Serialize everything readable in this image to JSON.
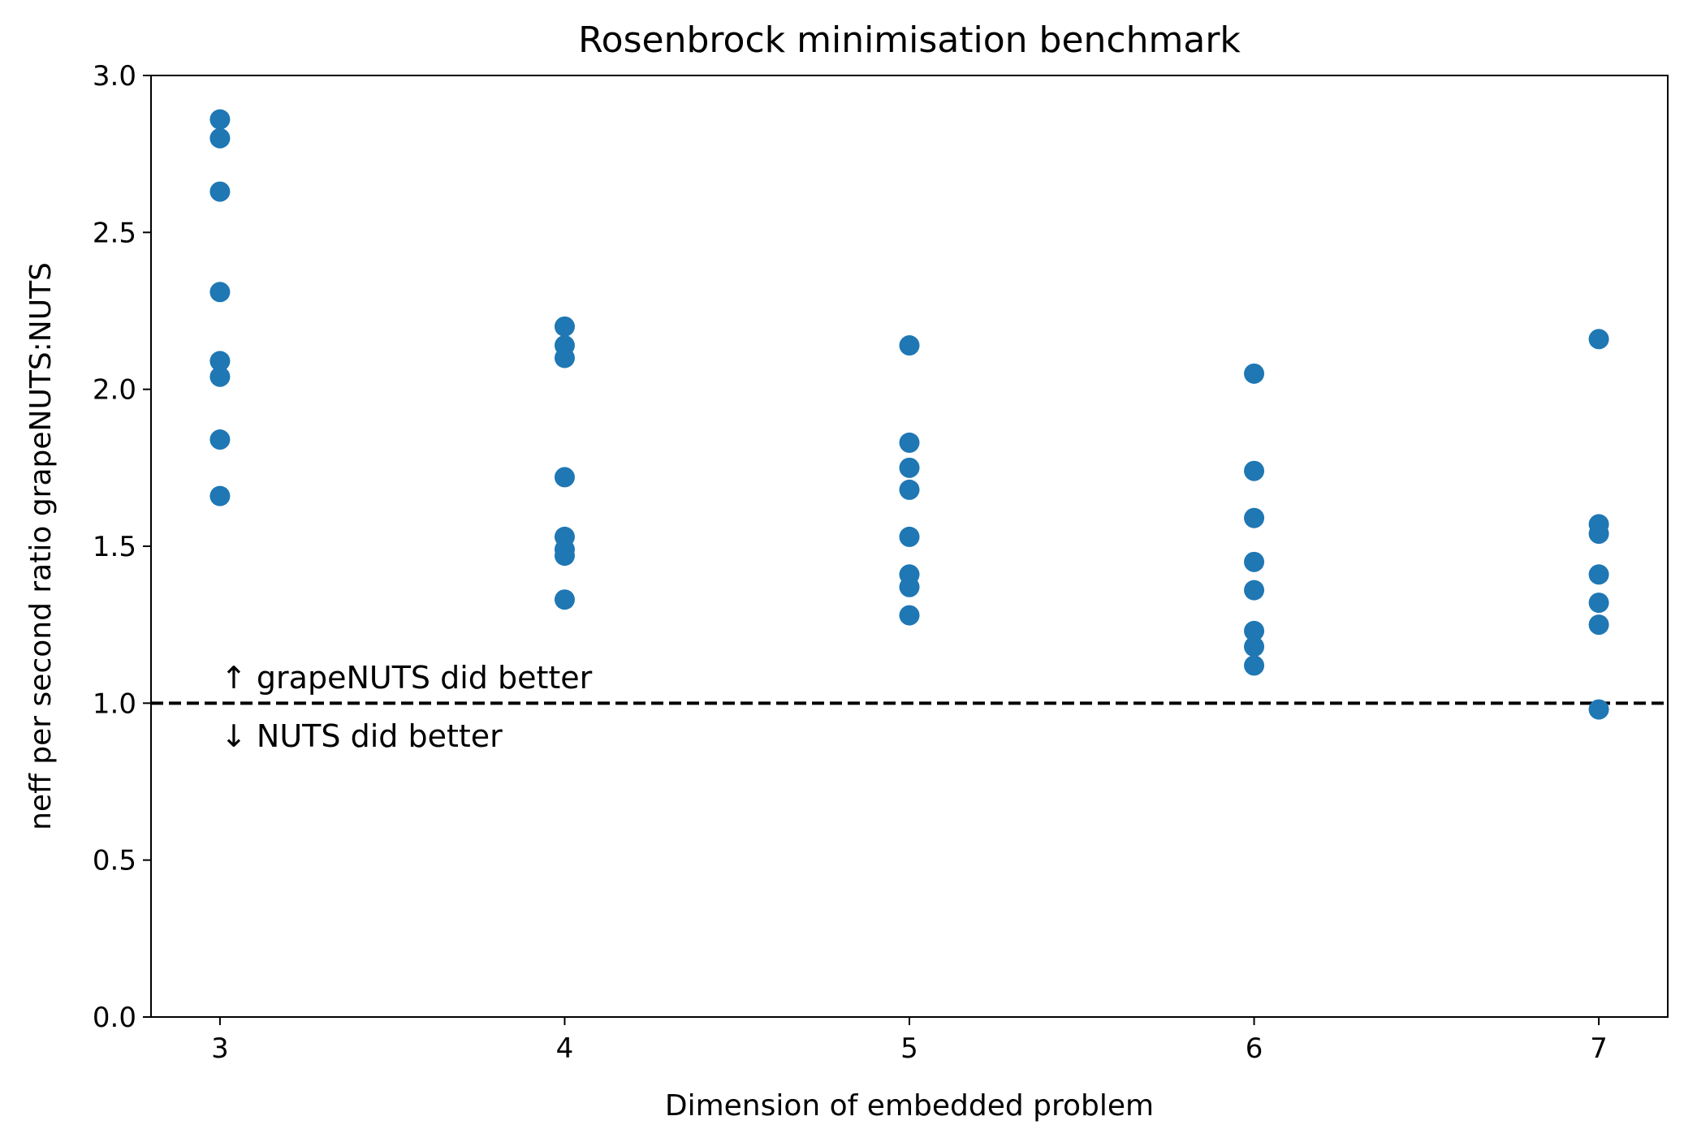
{
  "chart_data": {
    "type": "scatter",
    "title": "Rosenbrock minimisation benchmark",
    "xlabel": "Dimension of embedded problem",
    "ylabel": "neff per second ratio grapeNUTS:NUTS",
    "xlim": [
      2.8,
      7.2
    ],
    "ylim": [
      0.0,
      3.0
    ],
    "xticks": [
      3,
      4,
      5,
      6,
      7
    ],
    "xtick_labels": [
      "3",
      "4",
      "5",
      "6",
      "7"
    ],
    "yticks": [
      0.0,
      0.5,
      1.0,
      1.5,
      2.0,
      2.5,
      3.0
    ],
    "ytick_labels": [
      "0.0",
      "0.5",
      "1.0",
      "1.5",
      "2.0",
      "2.5",
      "3.0"
    ],
    "grid": false,
    "series_color": "#1f77b4",
    "points": [
      {
        "x": 3,
        "y": 2.86
      },
      {
        "x": 3,
        "y": 2.8
      },
      {
        "x": 3,
        "y": 2.63
      },
      {
        "x": 3,
        "y": 2.31
      },
      {
        "x": 3,
        "y": 2.09
      },
      {
        "x": 3,
        "y": 2.04
      },
      {
        "x": 3,
        "y": 1.84
      },
      {
        "x": 3,
        "y": 1.66
      },
      {
        "x": 4,
        "y": 2.2
      },
      {
        "x": 4,
        "y": 2.14
      },
      {
        "x": 4,
        "y": 2.1
      },
      {
        "x": 4,
        "y": 1.72
      },
      {
        "x": 4,
        "y": 1.53
      },
      {
        "x": 4,
        "y": 1.49
      },
      {
        "x": 4,
        "y": 1.47
      },
      {
        "x": 4,
        "y": 1.33
      },
      {
        "x": 5,
        "y": 2.14
      },
      {
        "x": 5,
        "y": 1.83
      },
      {
        "x": 5,
        "y": 1.75
      },
      {
        "x": 5,
        "y": 1.68
      },
      {
        "x": 5,
        "y": 1.53
      },
      {
        "x": 5,
        "y": 1.41
      },
      {
        "x": 5,
        "y": 1.37
      },
      {
        "x": 5,
        "y": 1.28
      },
      {
        "x": 6,
        "y": 2.05
      },
      {
        "x": 6,
        "y": 1.74
      },
      {
        "x": 6,
        "y": 1.59
      },
      {
        "x": 6,
        "y": 1.45
      },
      {
        "x": 6,
        "y": 1.36
      },
      {
        "x": 6,
        "y": 1.23
      },
      {
        "x": 6,
        "y": 1.18
      },
      {
        "x": 6,
        "y": 1.12
      },
      {
        "x": 7,
        "y": 2.16
      },
      {
        "x": 7,
        "y": 1.57
      },
      {
        "x": 7,
        "y": 1.54
      },
      {
        "x": 7,
        "y": 1.41
      },
      {
        "x": 7,
        "y": 1.32
      },
      {
        "x": 7,
        "y": 1.25
      },
      {
        "x": 7,
        "y": 0.98
      }
    ],
    "reference_line": {
      "y": 1.0,
      "color": "#000000",
      "style": "dashed"
    },
    "annotations": {
      "above": "↑ grapeNUTS did better",
      "below": "↓ NUTS did better"
    }
  }
}
